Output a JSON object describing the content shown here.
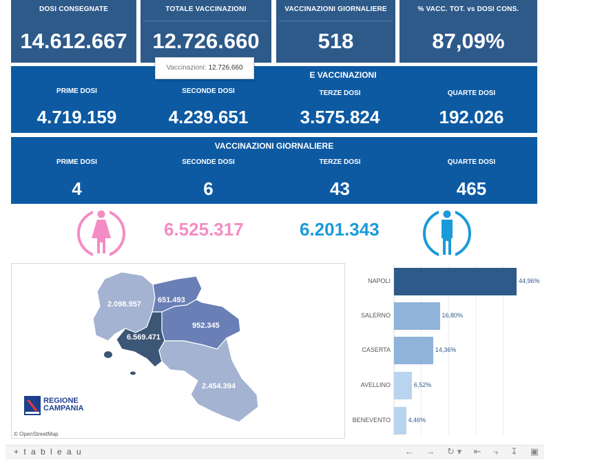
{
  "kpis": [
    {
      "label": "DOSI CONSEGNATE",
      "value": "14.612.667"
    },
    {
      "label": "TOTALE VACCINAZIONI",
      "value": "12.726.660"
    },
    {
      "label": "VACCINAZIONI GIORNALIERE",
      "value": "518"
    },
    {
      "label": "% VACC. TOT. vs DOSI CONS.",
      "value": "87,09%"
    }
  ],
  "tooltip": {
    "key": "Vaccinazioni:",
    "value": "12.726.660"
  },
  "totals_band": {
    "title": "E VACCINAZIONI",
    "cols": [
      {
        "label": "PRIME DOSI",
        "value": "4.719.159"
      },
      {
        "label": "SECONDE DOSI",
        "value": "4.239.651"
      },
      {
        "label": "TERZE DOSI",
        "value": "3.575.824"
      },
      {
        "label": "QUARTE DOSI",
        "value": "192.026"
      }
    ]
  },
  "daily_band": {
    "title": "VACCINAZIONI GIORNALIERE",
    "cols": [
      {
        "label": "PRIME DOSI",
        "value": "4"
      },
      {
        "label": "SECONDE DOSI",
        "value": "6"
      },
      {
        "label": "TERZE DOSI",
        "value": "43"
      },
      {
        "label": "QUARTE DOSI",
        "value": "465"
      }
    ]
  },
  "gender": {
    "female": {
      "value": "6.525.317",
      "color": "#f48cc4",
      "icon": "female-icon"
    },
    "male": {
      "value": "6.201.343",
      "color": "#1a9ad9",
      "icon": "male-icon"
    }
  },
  "map": {
    "regions": [
      {
        "name": "caserta",
        "value": "2.098.957",
        "color": "#a3b3d1"
      },
      {
        "name": "benevento",
        "value": "651.493",
        "color": "#6a7fb6"
      },
      {
        "name": "avellino",
        "value": "952.345",
        "color": "#6a7fb6"
      },
      {
        "name": "napoli",
        "value": "6.569.471",
        "color": "#3c5776"
      },
      {
        "name": "salerno",
        "value": "2.454.394",
        "color": "#a3b3d1"
      }
    ],
    "logo_line1": "REGIONE",
    "logo_line2": "CAMPANIA",
    "attribution": "© OpenStreetMap"
  },
  "chart_data": {
    "type": "bar",
    "orientation": "horizontal",
    "categories": [
      "NAPOLI",
      "SALERNO",
      "CASERTA",
      "AVELLINO",
      "BENEVENTO"
    ],
    "values": [
      44.96,
      16.8,
      14.36,
      6.52,
      4.46
    ],
    "labels": [
      "44,96%",
      "16,80%",
      "14,36%",
      "6,52%",
      "4,46%"
    ],
    "colors": [
      "#2e5a8a",
      "#8fb3d9",
      "#8fb3d9",
      "#b8d4ee",
      "#b8d4ee"
    ],
    "xlim": [
      0,
      50
    ],
    "grid": true
  },
  "footer": {
    "brand": "+ t a b l e a u",
    "icons": [
      "undo-icon",
      "redo-icon",
      "revert-icon",
      "reset-icon",
      "share-icon",
      "download-icon",
      "fullscreen-icon"
    ]
  }
}
